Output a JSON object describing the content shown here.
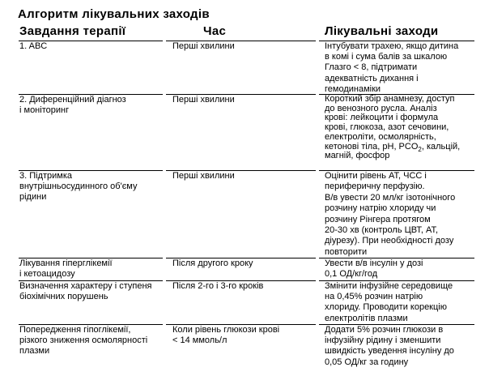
{
  "title": "Алгоритм лікувальних заходів",
  "headers": [
    "Завдання терапії",
    "Час",
    "Лікувальні заходи"
  ],
  "rows": [
    {
      "task": "1. ABC",
      "time": "Перші хвилини",
      "measures": "Інтубувати трахею, якщо дитина\nв комі і сума балів за шкалою\nГлазго < 8, підтримати\nадекватність дихання і\nгемодинаміки"
    },
    {
      "task": "2. Диференційний діагноз\nі моніторинг",
      "time": "Перші хвилини",
      "measures_a": "Короткий збір анамнезу, доступ\nдо венозного русла. Аналіз\nкрові: лейкоцити і формула\nкрові, глюкоза, азот сечовини,\nелектроліти, осмолярність,\nкетонові тіла, pH, PCO",
      "measures_sub": "2",
      "measures_b": ", кальцій,\nмагній, фосфор"
    },
    {
      "task": "3. Підтримка\nвнутрішньосудинного об'єму\nрідини",
      "time": "Перші хвилини",
      "measures": "Оцінити рівень АТ, ЧСС і\nпериферичну перфузію.\nВ/в увести 20 мл/кг ізотонічного\nрозчину натрію  хлориду чи\nрозчину Рінгера протягом\n20-30 хв (контроль ЦВТ, АТ,\nдіурезу). При необхідності дозу\nповторити"
    },
    {
      "task": "Лікування гіперглікемії\nі кетоацидозу",
      "time": "Після другого кроку",
      "measures": "Увести в/в інсулін у дозі\n0,1 ОД/кг/год"
    },
    {
      "task": "Визначення характеру і ступеня\nбіохімічних порушень",
      "time": "Після 2-го і 3-го кроків",
      "measures": "Змінити інфузійне середовище\nна 0,45% розчин натрію\nхлориду. Проводити корекцію\nелектролітів плазми"
    },
    {
      "task": "Попередження гіпоглікемії,\nрізкого зниження осмолярності\nплазми",
      "time": "Коли рівень глюкози крові\n< 14 ммоль/л",
      "measures": "Додати 5% розчин глюкози в\nінфузійну рідину і зменшити\nшвидкість уведення інсуліну до\n0,05 ОД/кг за годину"
    }
  ]
}
